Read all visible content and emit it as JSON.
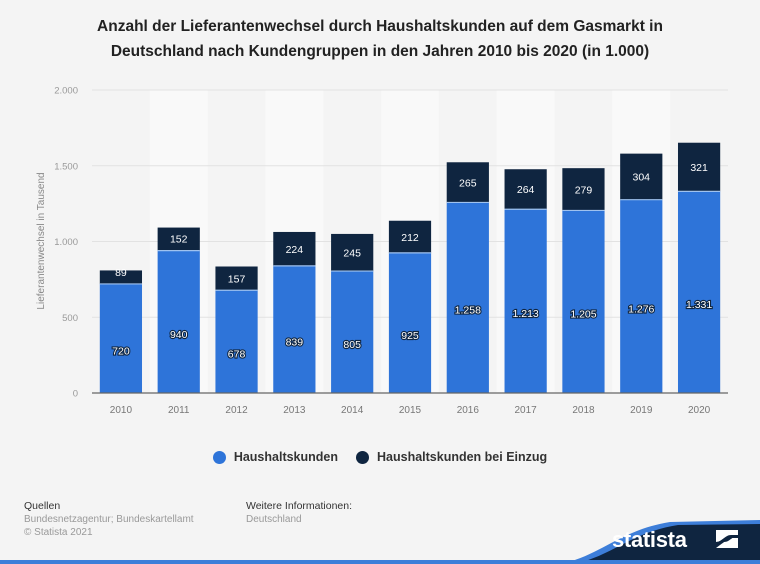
{
  "header": {
    "title_line1": "Anzahl der Lieferantenwechsel durch Haushaltskunden auf dem Gasmarkt in",
    "title_line2": "Deutschland nach Kundengruppen in den Jahren 2010 bis 2020 (in 1.000)"
  },
  "chart_data": {
    "type": "bar",
    "stacked": true,
    "title": "Anzahl der Lieferantenwechsel durch Haushaltskunden auf dem Gasmarkt in Deutschland nach Kundengruppen in den Jahren 2010 bis 2020 (in 1.000)",
    "xlabel": "",
    "ylabel": "Lieferantenwechsel in Tausend",
    "ylim": [
      0,
      2000
    ],
    "yticks": [
      0,
      500,
      1000,
      1500,
      2000
    ],
    "ytick_labels": [
      "0",
      "500",
      "1.000",
      "1.500",
      "2.000"
    ],
    "grid": true,
    "legend_position": "bottom-center",
    "categories": [
      "2010",
      "2011",
      "2012",
      "2013",
      "2014",
      "2015",
      "2016",
      "2017",
      "2018",
      "2019",
      "2020"
    ],
    "series": [
      {
        "name": "Haushaltskunden",
        "color": "#2e74d9",
        "values": [
          720,
          940,
          678,
          839,
          805,
          925,
          1258,
          1213,
          1205,
          1276,
          1331
        ],
        "labels": [
          "720",
          "940",
          "678",
          "839",
          "805",
          "925",
          "1.258",
          "1.213",
          "1.205",
          "1.276",
          "1.331"
        ]
      },
      {
        "name": "Haushaltskunden bei Einzug",
        "color": "#0f2540",
        "values": [
          89,
          152,
          157,
          224,
          245,
          212,
          265,
          264,
          279,
          304,
          321
        ],
        "labels": [
          "89",
          "152",
          "157",
          "224",
          "245",
          "212",
          "265",
          "264",
          "279",
          "304",
          "321"
        ]
      }
    ]
  },
  "legend": {
    "items": [
      {
        "label": "Haushaltskunden",
        "color": "#2e74d9"
      },
      {
        "label": "Haushaltskunden bei Einzug",
        "color": "#0f2540"
      }
    ]
  },
  "footer": {
    "sources_heading": "Quellen",
    "sources_text": "Bundesnetzagentur; Bundeskartellamt",
    "copyright": "© Statista 2021",
    "info_heading": "Weitere Informationen:",
    "info_text": "Deutschland",
    "brand": "statista"
  }
}
